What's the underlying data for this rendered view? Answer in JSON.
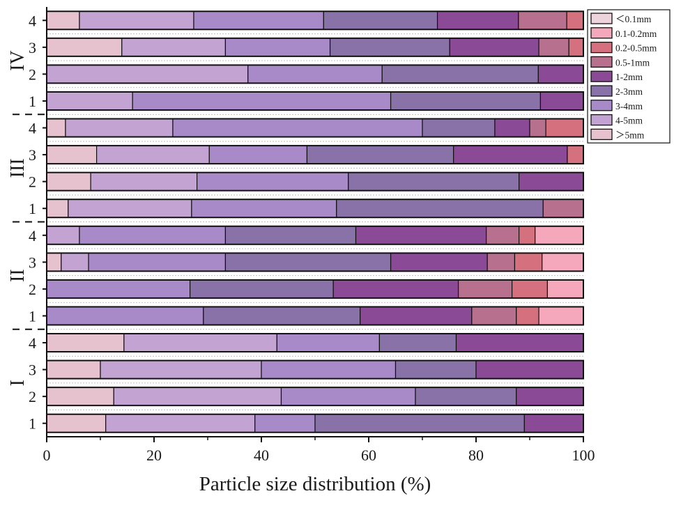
{
  "chart_data": {
    "type": "bar",
    "orientation": "horizontal",
    "stacked": true,
    "title": "",
    "xlabel": "Particle size distribution (%)",
    "ylabel": "",
    "xlim": [
      0,
      100
    ],
    "xticks": [
      0,
      20,
      40,
      60,
      80,
      100
    ],
    "legend_position": "top-right",
    "grid": false,
    "groups": [
      {
        "name": "I",
        "rows": [
          "1",
          "2",
          "3",
          "4"
        ]
      },
      {
        "name": "II",
        "rows": [
          "1",
          "2",
          "3",
          "4"
        ]
      },
      {
        "name": "III",
        "rows": [
          "1",
          "2",
          "3",
          "4"
        ]
      },
      {
        "name": "IV",
        "rows": [
          "1",
          "2",
          "3",
          "4"
        ]
      }
    ],
    "categories": [
      "I-1",
      "I-2",
      "I-3",
      "I-4",
      "II-1",
      "II-2",
      "II-3",
      "II-4",
      "III-1",
      "III-2",
      "III-3",
      "III-4",
      "IV-1",
      "IV-2",
      "IV-3",
      "IV-4"
    ],
    "series": [
      {
        "name": "＞5mm",
        "color": "#e6c2cf",
        "values": [
          11.0,
          12.5,
          10.0,
          14.4,
          0,
          0,
          2.7,
          0,
          4.0,
          8.2,
          9.3,
          3.5,
          0,
          0,
          14.0,
          6.1
        ]
      },
      {
        "name": "4-5mm",
        "color": "#c2a3d2",
        "values": [
          27.8,
          31.2,
          30.0,
          28.5,
          0,
          0,
          5.1,
          6.1,
          23.0,
          19.8,
          21.0,
          20.0,
          16.0,
          37.5,
          19.3,
          21.3
        ]
      },
      {
        "name": "3-4mm",
        "color": "#a98ac8",
        "values": [
          11.2,
          25.0,
          25.0,
          19.1,
          29.2,
          26.7,
          25.5,
          27.2,
          27.0,
          28.2,
          18.2,
          46.5,
          48.1,
          25.0,
          19.5,
          24.2
        ]
      },
      {
        "name": "2-3mm",
        "color": "#8872a8",
        "values": [
          39.0,
          18.8,
          15.0,
          14.3,
          29.2,
          26.7,
          30.8,
          24.3,
          38.5,
          31.8,
          27.3,
          13.5,
          27.9,
          29.1,
          22.3,
          21.2
        ]
      },
      {
        "name": "1-2mm",
        "color": "#8a4a96",
        "values": [
          11.0,
          12.5,
          20.0,
          23.7,
          20.8,
          23.3,
          18.0,
          24.3,
          0,
          12.0,
          21.2,
          6.5,
          8.0,
          8.4,
          16.6,
          15.1
        ]
      },
      {
        "name": "0.5-1mm",
        "color": "#b8708f",
        "values": [
          0,
          0,
          0,
          0,
          8.3,
          10.0,
          5.1,
          6.1,
          7.5,
          0,
          0,
          3.0,
          0,
          0,
          5.6,
          9.0
        ]
      },
      {
        "name": "0.2-0.5mm",
        "color": "#d5707e",
        "values": [
          0,
          0,
          0,
          0,
          4.2,
          6.6,
          5.1,
          3.0,
          0,
          0,
          3.0,
          7.0,
          0,
          0,
          2.7,
          3.1
        ]
      },
      {
        "name": "0.1-0.2mm",
        "color": "#f5a8bb",
        "values": [
          0,
          0,
          0,
          0,
          8.3,
          6.7,
          7.7,
          9.0,
          0,
          0,
          0,
          0,
          0,
          0,
          0,
          0
        ]
      },
      {
        "name": "＜0.1mm",
        "color": "#ecd3dc",
        "values": [
          0,
          0,
          0,
          0,
          0,
          0,
          0,
          0,
          0,
          0,
          0,
          0,
          0,
          0,
          0,
          0
        ]
      }
    ],
    "legend_order": [
      "＜0.1mm",
      "0.1-0.2mm",
      "0.2-0.5mm",
      "0.5-1mm",
      "1-2mm",
      "2-3mm",
      "3-4mm",
      "4-5mm",
      "＞5mm"
    ]
  }
}
